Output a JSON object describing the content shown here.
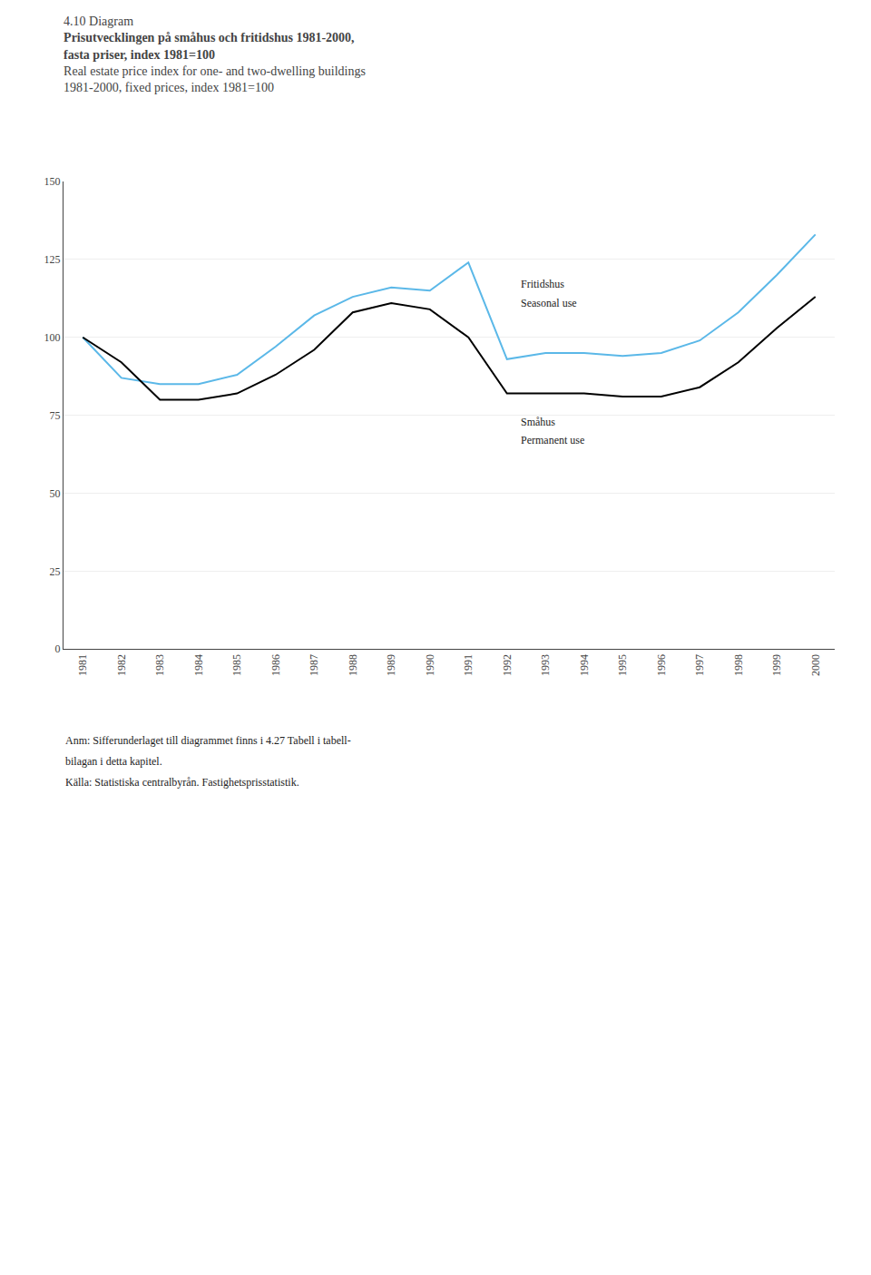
{
  "chart_data": {
    "type": "line",
    "label": "4.10 Diagram",
    "title": [
      "Prisutvecklingen på småhus och fritidshus 1981-2000,",
      "fasta priser, index 1981=100"
    ],
    "subtitle": [
      "Real estate price index for one- and two-dwelling buildings",
      "1981-2000, fixed prices, index 1981=100"
    ],
    "x": [
      1981,
      1982,
      1983,
      1984,
      1985,
      1986,
      1987,
      1988,
      1989,
      1990,
      1991,
      1992,
      1993,
      1994,
      1995,
      1996,
      1997,
      1998,
      1999,
      2000
    ],
    "xlim": [
      1980.5,
      2000.5
    ],
    "xticks": [
      1981,
      1982,
      1983,
      1984,
      1985,
      1986,
      1987,
      1988,
      1989,
      1990,
      1991,
      1992,
      1993,
      1994,
      1995,
      1996,
      1997,
      1998,
      1999,
      2000
    ],
    "ylim": [
      0,
      150
    ],
    "yticks": [
      0,
      25,
      50,
      75,
      100,
      125,
      150
    ],
    "grid": "y",
    "series": [
      {
        "name": "Fritidshus",
        "color": "#5bb8e8",
        "values": [
          100,
          87,
          85,
          85,
          88,
          97,
          107,
          113,
          116,
          115,
          124,
          93,
          95,
          95,
          94,
          95,
          99,
          108,
          120,
          133
        ]
      },
      {
        "name": "Småhus",
        "color": "#000000",
        "values": [
          100,
          92,
          80,
          80,
          82,
          88,
          96,
          108,
          111,
          109,
          100,
          82,
          82,
          82,
          81,
          81,
          84,
          92,
          103,
          113
        ]
      }
    ],
    "annotations": [
      {
        "text": "Fritidshus",
        "x": 1992.3,
        "y": 117
      },
      {
        "text": "Seasonal use",
        "x": 1992.3,
        "y": 111
      },
      {
        "text": "Småhus",
        "x": 1992.3,
        "y": 73
      },
      {
        "text": "Permanent use",
        "x": 1992.3,
        "y": 67
      }
    ],
    "notes": [
      "Anm: Sifferunderlaget till diagrammet finns i 4.27 Tabell i tabell-",
      "bilagan i detta kapitel."
    ],
    "source": "Källa: Statistiska centralbyrån. Fastighetsprisstatistik."
  }
}
